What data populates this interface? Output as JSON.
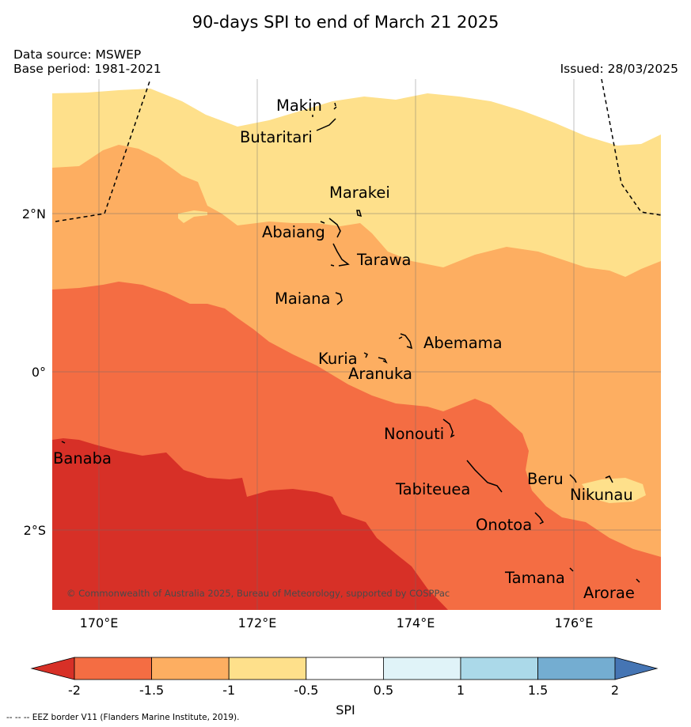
{
  "title": "90-days SPI to end of March 21 2025",
  "data_source": "Data source: MSWEP",
  "base_period": "Base period: 1981-2021",
  "issued": "Issued: 28/03/2025",
  "copyright": "© Commonwealth of Australia 2025, Bureau of Meteorology, supported by COSPPac",
  "eez_note": "--  --  -- EEZ border V11 (Flanders Marine Institute, 2019).",
  "map": {
    "lat_labels": [
      "2°N",
      "0°",
      "2°S"
    ],
    "lon_labels": [
      "170°E",
      "172°E",
      "174°E",
      "176°E"
    ],
    "places": [
      {
        "name": "Makin"
      },
      {
        "name": "Butaritari"
      },
      {
        "name": "Marakei"
      },
      {
        "name": "Abaiang"
      },
      {
        "name": "Tarawa"
      },
      {
        "name": "Maiana"
      },
      {
        "name": "Abemama"
      },
      {
        "name": "Kuria"
      },
      {
        "name": "Aranuka"
      },
      {
        "name": "Nonouti"
      },
      {
        "name": "Banaba"
      },
      {
        "name": "Tabiteuea"
      },
      {
        "name": "Beru"
      },
      {
        "name": "Nikunau"
      },
      {
        "name": "Onotoa"
      },
      {
        "name": "Tamana"
      },
      {
        "name": "Arorae"
      }
    ],
    "spi_class_colors": {
      "below_-2": "#d73027",
      "-2_to_-1.5": "#f46d43",
      "-1.5_to_-1": "#fdae61",
      "-1_to_-0.5": "#fee08b"
    }
  },
  "colorbar": {
    "label": "SPI",
    "ticks": [
      "-2",
      "-1.5",
      "-1",
      "-0.5",
      "0.5",
      "1",
      "1.5",
      "2"
    ],
    "colors": [
      "#d73027",
      "#f46d43",
      "#fdae61",
      "#fee08b",
      "#ffffff",
      "#e0f3f8",
      "#abd9e9",
      "#74add1",
      "#4575b4"
    ]
  }
}
